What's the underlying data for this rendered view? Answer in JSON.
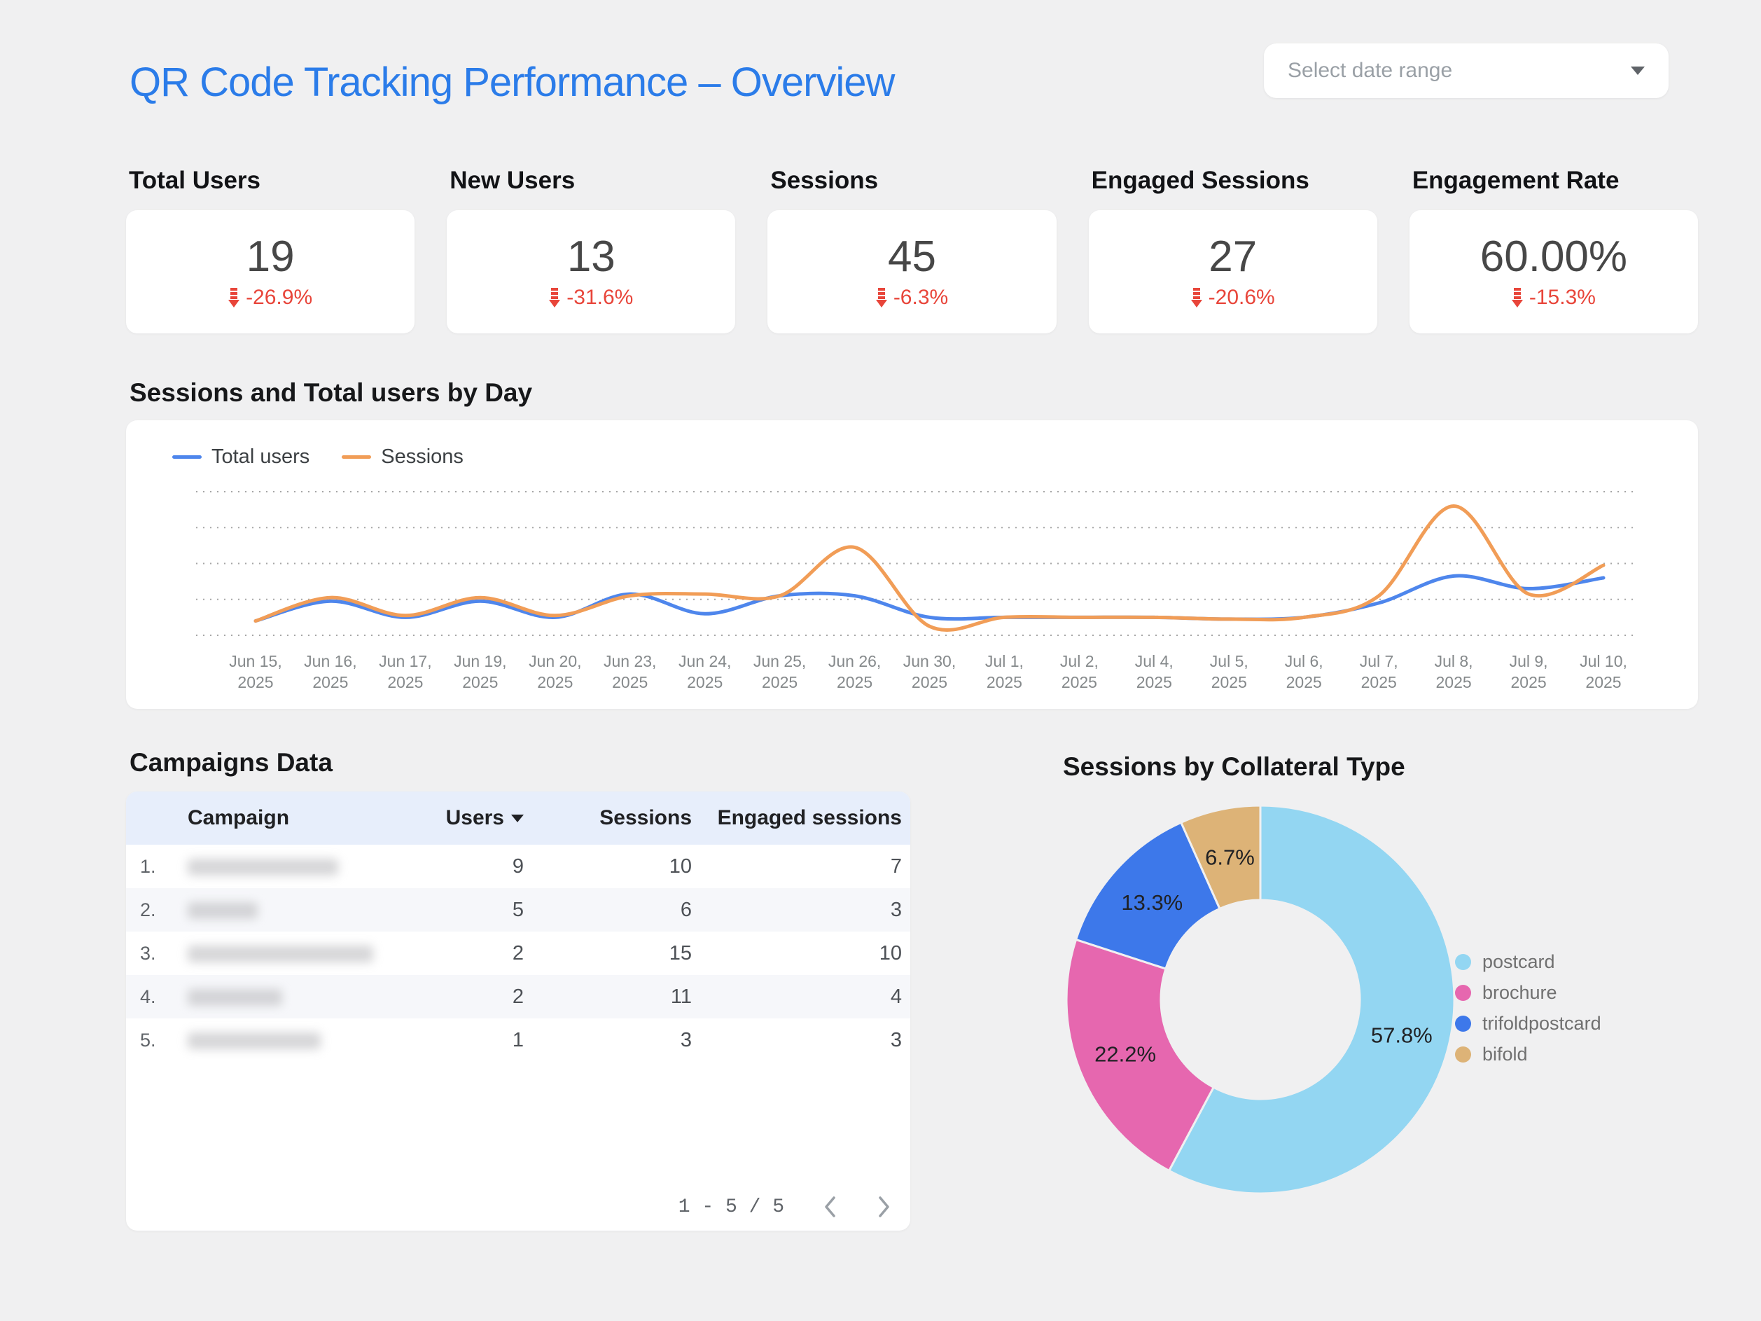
{
  "page": {
    "title": "QR Code Tracking Performance – Overview",
    "background": "#f0f0f1",
    "title_color": "#2b7ce9"
  },
  "date_control": {
    "placeholder": "Select date range"
  },
  "delta_color": "#e8453a",
  "kpis": [
    {
      "label": "Total Users",
      "value": "19",
      "delta": "-26.9%",
      "direction": "down"
    },
    {
      "label": "New Users",
      "value": "13",
      "delta": "-31.6%",
      "direction": "down"
    },
    {
      "label": "Sessions",
      "value": "45",
      "delta": "-6.3%",
      "direction": "down"
    },
    {
      "label": "Engaged Sessions",
      "value": "27",
      "delta": "-20.6%",
      "direction": "down"
    },
    {
      "label": "Engagement Rate",
      "value": "60.00%",
      "delta": "-15.3%",
      "direction": "down"
    }
  ],
  "line_section": {
    "title": "Sessions and Total users by Day"
  },
  "chart_data": [
    {
      "type": "line",
      "title": "Sessions and Total users by Day",
      "x": [
        "Jun 15, 2025",
        "Jun 16, 2025",
        "Jun 17, 2025",
        "Jun 19, 2025",
        "Jun 20, 2025",
        "Jun 23, 2025",
        "Jun 24, 2025",
        "Jun 25, 2025",
        "Jun 26, 2025",
        "Jun 30, 2025",
        "Jul 1, 2025",
        "Jul 2, 2025",
        "Jul 4, 2025",
        "Jul 5, 2025",
        "Jul 6, 2025",
        "Jul 7, 2025",
        "Jul 8, 2025",
        "Jul 9, 2025",
        "Jul 10, 2025"
      ],
      "series": [
        {
          "name": "Total users",
          "color": "#4e86ec",
          "values": [
            0.8,
            1.9,
            1.0,
            1.9,
            1.0,
            2.3,
            1.2,
            2.2,
            2.2,
            1.0,
            1.0,
            1.0,
            1.0,
            0.9,
            1.0,
            1.8,
            3.3,
            2.6,
            3.2
          ]
        },
        {
          "name": "Sessions",
          "color": "#f19d57",
          "values": [
            0.8,
            2.1,
            1.1,
            2.1,
            1.1,
            2.2,
            2.3,
            2.2,
            4.9,
            0.5,
            1.0,
            1.0,
            1.0,
            0.9,
            1.0,
            2.2,
            7.2,
            2.3,
            3.9
          ]
        }
      ],
      "ylim": [
        0,
        8
      ],
      "grid": "horizontal dotted, y tick labels hidden",
      "legend_position": "top-left"
    },
    {
      "type": "pie",
      "donut": true,
      "title": "Sessions by Collateral Type",
      "labels": [
        "postcard",
        "brochure",
        "trifoldpostcard",
        "bifold"
      ],
      "values": [
        57.8,
        22.2,
        13.3,
        6.7
      ],
      "unit": "%",
      "colors": [
        "#93d6f2",
        "#e667af",
        "#3d78ea",
        "#ddb377"
      ],
      "legend_position": "right"
    }
  ],
  "table_section": {
    "title": "Campaigns Data",
    "header_bg": "#e7eefb",
    "columns": [
      "Campaign",
      "Users",
      "Sessions",
      "Engaged sessions"
    ],
    "sort": {
      "column": "Users",
      "direction": "desc"
    },
    "rows": [
      {
        "num": "1.",
        "campaign_redacted": true,
        "campaign_blur_width": 215,
        "users": "9",
        "sessions": "10",
        "engaged_sessions": "7"
      },
      {
        "num": "2.",
        "campaign_redacted": true,
        "campaign_blur_width": 100,
        "users": "5",
        "sessions": "6",
        "engaged_sessions": "3"
      },
      {
        "num": "3.",
        "campaign_redacted": true,
        "campaign_blur_width": 265,
        "users": "2",
        "sessions": "15",
        "engaged_sessions": "10"
      },
      {
        "num": "4.",
        "campaign_redacted": true,
        "campaign_blur_width": 135,
        "users": "2",
        "sessions": "11",
        "engaged_sessions": "4"
      },
      {
        "num": "5.",
        "campaign_redacted": true,
        "campaign_blur_width": 190,
        "users": "1",
        "sessions": "3",
        "engaged_sessions": "3"
      }
    ],
    "pagination": {
      "label": "1 - 5 / 5"
    }
  },
  "donut_section": {
    "title": "Sessions by Collateral Type"
  }
}
